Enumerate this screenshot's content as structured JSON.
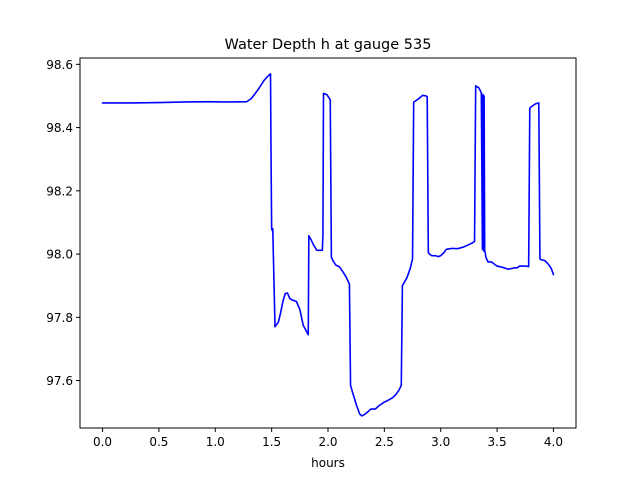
{
  "chart_data": {
    "type": "line",
    "title": "Water Depth h at gauge 535",
    "xlabel": "hours",
    "ylabel": "",
    "xlim": [
      -0.2,
      4.2
    ],
    "ylim": [
      97.45,
      98.62
    ],
    "xticks": [
      0.0,
      0.5,
      1.0,
      1.5,
      2.0,
      2.5,
      3.0,
      3.5,
      4.0
    ],
    "xtick_labels": [
      "0.0",
      "0.5",
      "1.0",
      "1.5",
      "2.0",
      "2.5",
      "3.0",
      "3.5",
      "4.0"
    ],
    "yticks": [
      97.6,
      97.8,
      98.0,
      98.2,
      98.4,
      98.6
    ],
    "ytick_labels": [
      "97.6",
      "97.8",
      "98.0",
      "98.2",
      "98.4",
      "98.6"
    ],
    "grid": false,
    "legend": "none",
    "series": [
      {
        "color": "#0000ff",
        "x": [
          0.0,
          0.25,
          0.5,
          0.75,
          0.95,
          1.05,
          1.15,
          1.28,
          1.32,
          1.38,
          1.43,
          1.46,
          1.49,
          1.495,
          1.5,
          1.505,
          1.51,
          1.53,
          1.56,
          1.58,
          1.6,
          1.62,
          1.64,
          1.66,
          1.68,
          1.72,
          1.75,
          1.78,
          1.81,
          1.825,
          1.83,
          1.85,
          1.87,
          1.9,
          1.95,
          1.955,
          1.96,
          1.99,
          2.02,
          2.03,
          2.05,
          2.07,
          2.1,
          2.13,
          2.16,
          2.19,
          2.2,
          2.22,
          2.25,
          2.28,
          2.3,
          2.32,
          2.35,
          2.38,
          2.42,
          2.45,
          2.5,
          2.53,
          2.57,
          2.6,
          2.63,
          2.65,
          2.66,
          2.7,
          2.73,
          2.75,
          2.76,
          2.8,
          2.84,
          2.87,
          2.88,
          2.89,
          2.9,
          2.92,
          2.95,
          2.98,
          3.0,
          3.03,
          3.05,
          3.1,
          3.15,
          3.2,
          3.25,
          3.28,
          3.3,
          3.31,
          3.34,
          3.36,
          3.37,
          3.372,
          3.375,
          3.38,
          3.385,
          3.39,
          3.395,
          3.4,
          3.42,
          3.45,
          3.5,
          3.55,
          3.6,
          3.65,
          3.68,
          3.7,
          3.73,
          3.76,
          3.78,
          3.79,
          3.8,
          3.84,
          3.87,
          3.88,
          3.89,
          3.92,
          3.95,
          3.98,
          4.0
        ],
        "y": [
          98.478,
          98.478,
          98.479,
          98.481,
          98.482,
          98.481,
          98.481,
          98.482,
          98.492,
          98.52,
          98.548,
          98.56,
          98.57,
          98.3,
          98.08,
          98.075,
          98.08,
          97.77,
          97.785,
          97.815,
          97.85,
          97.875,
          97.877,
          97.86,
          97.855,
          97.85,
          97.825,
          97.775,
          97.755,
          97.745,
          98.058,
          98.045,
          98.03,
          98.012,
          98.012,
          98.06,
          98.508,
          98.504,
          98.488,
          97.99,
          97.975,
          97.965,
          97.96,
          97.945,
          97.928,
          97.905,
          97.585,
          97.56,
          97.525,
          97.495,
          97.488,
          97.492,
          97.5,
          97.51,
          97.51,
          97.52,
          97.532,
          97.537,
          97.545,
          97.555,
          97.57,
          97.585,
          97.9,
          97.925,
          97.955,
          97.985,
          98.48,
          98.49,
          98.502,
          98.5,
          98.498,
          98.005,
          98.0,
          97.995,
          97.995,
          97.992,
          97.995,
          98.005,
          98.015,
          98.018,
          98.017,
          98.022,
          98.03,
          98.035,
          98.04,
          98.532,
          98.525,
          98.51,
          98.015,
          98.5,
          98.505,
          98.01,
          98.5,
          98.01,
          98.005,
          97.99,
          97.975,
          97.975,
          97.962,
          97.958,
          97.952,
          97.956,
          97.957,
          97.962,
          97.962,
          97.962,
          97.96,
          98.46,
          98.465,
          98.475,
          98.478,
          97.985,
          97.982,
          97.98,
          97.97,
          97.955,
          97.935
        ]
      }
    ]
  }
}
